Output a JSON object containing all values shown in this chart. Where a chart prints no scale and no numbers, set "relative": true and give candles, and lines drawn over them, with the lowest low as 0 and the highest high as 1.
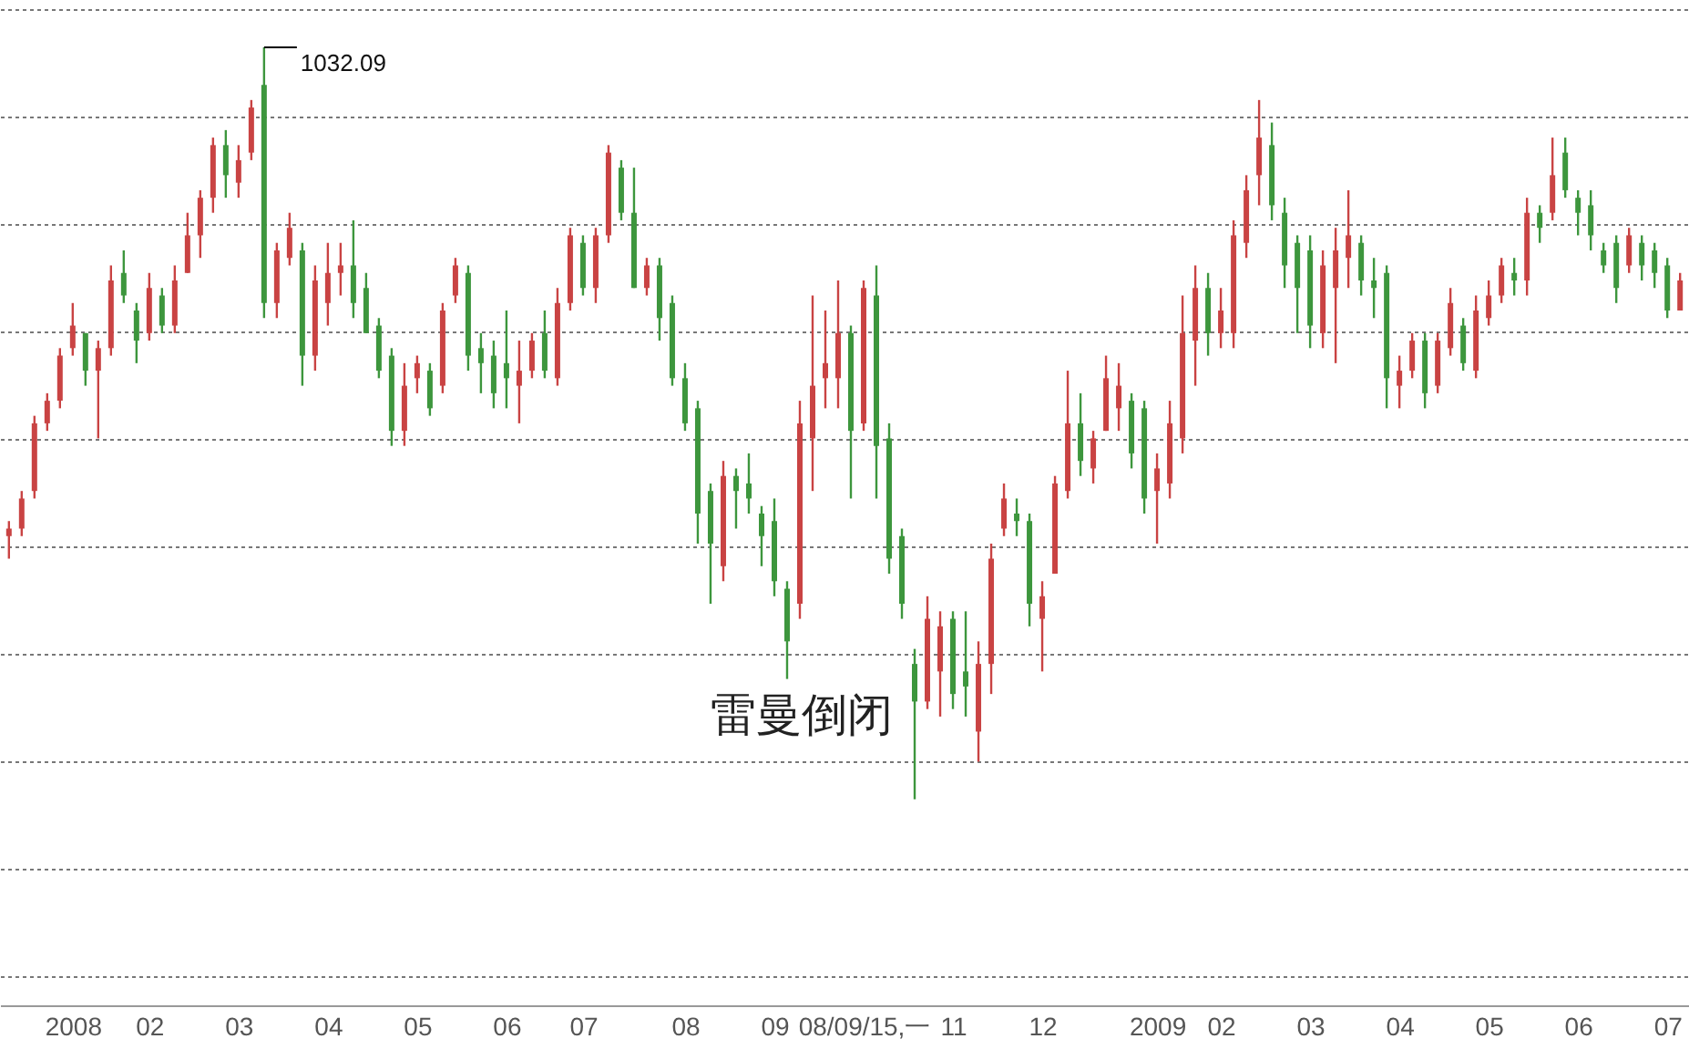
{
  "chart_data": {
    "type": "candlestick",
    "relative": true,
    "grid": "y",
    "categories": [
      null,
      null,
      null,
      null,
      null,
      "2008",
      null,
      null,
      null,
      null,
      null,
      "02",
      null,
      null,
      null,
      null,
      null,
      null,
      "03",
      null,
      null,
      null,
      null,
      null,
      null,
      "04",
      null,
      null,
      null,
      null,
      null,
      null,
      "05",
      null,
      null,
      null,
      null,
      null,
      null,
      "06",
      null,
      null,
      null,
      null,
      null,
      "07",
      null,
      null,
      null,
      null,
      null,
      null,
      null,
      "08",
      null,
      null,
      null,
      null,
      null,
      null,
      "09",
      null,
      null,
      null,
      null,
      null,
      null,
      "08/09/15,一",
      null,
      null,
      null,
      null,
      null,
      null,
      "11",
      null,
      null,
      null,
      null,
      null,
      null,
      "12",
      null,
      null,
      null,
      null,
      null,
      null,
      null,
      null,
      "2009",
      null,
      null,
      null,
      null,
      "02",
      null,
      null,
      null,
      null,
      null,
      null,
      "03",
      null,
      null,
      null,
      null,
      null,
      null,
      "04",
      null,
      null,
      null,
      null,
      null,
      null,
      "05",
      null,
      null,
      null,
      null,
      null,
      null,
      "06",
      null,
      null,
      null,
      null,
      null,
      null,
      "07",
      null
    ],
    "ohlc": [
      [
        0.35,
        0.37,
        0.32,
        0.36
      ],
      [
        0.36,
        0.41,
        0.35,
        0.4
      ],
      [
        0.41,
        0.51,
        0.4,
        0.5
      ],
      [
        0.5,
        0.54,
        0.49,
        0.53
      ],
      [
        0.53,
        0.6,
        0.52,
        0.59
      ],
      [
        0.6,
        0.66,
        0.59,
        0.63
      ],
      [
        0.62,
        0.62,
        0.55,
        0.57
      ],
      [
        0.57,
        0.61,
        0.48,
        0.6
      ],
      [
        0.6,
        0.71,
        0.59,
        0.69
      ],
      [
        0.7,
        0.73,
        0.66,
        0.67
      ],
      [
        0.65,
        0.66,
        0.58,
        0.61
      ],
      [
        0.62,
        0.7,
        0.61,
        0.68
      ],
      [
        0.67,
        0.68,
        0.62,
        0.63
      ],
      [
        0.63,
        0.71,
        0.62,
        0.69
      ],
      [
        0.7,
        0.78,
        0.7,
        0.75
      ],
      [
        0.75,
        0.81,
        0.72,
        0.8
      ],
      [
        0.8,
        0.88,
        0.78,
        0.87
      ],
      [
        0.87,
        0.89,
        0.8,
        0.83
      ],
      [
        0.82,
        0.87,
        0.8,
        0.85
      ],
      [
        0.86,
        0.93,
        0.85,
        0.92
      ],
      [
        0.95,
        1.0,
        0.64,
        0.66
      ],
      [
        0.66,
        0.74,
        0.64,
        0.73
      ],
      [
        0.72,
        0.78,
        0.71,
        0.76
      ],
      [
        0.73,
        0.74,
        0.55,
        0.59
      ],
      [
        0.59,
        0.71,
        0.57,
        0.69
      ],
      [
        0.66,
        0.74,
        0.63,
        0.7
      ],
      [
        0.7,
        0.74,
        0.67,
        0.71
      ],
      [
        0.71,
        0.77,
        0.64,
        0.66
      ],
      [
        0.68,
        0.7,
        0.62,
        0.62
      ],
      [
        0.63,
        0.64,
        0.56,
        0.57
      ],
      [
        0.59,
        0.6,
        0.47,
        0.49
      ],
      [
        0.49,
        0.58,
        0.47,
        0.55
      ],
      [
        0.56,
        0.59,
        0.54,
        0.58
      ],
      [
        0.57,
        0.58,
        0.51,
        0.52
      ],
      [
        0.55,
        0.66,
        0.54,
        0.65
      ],
      [
        0.67,
        0.72,
        0.66,
        0.71
      ],
      [
        0.7,
        0.71,
        0.57,
        0.59
      ],
      [
        0.6,
        0.62,
        0.54,
        0.58
      ],
      [
        0.59,
        0.61,
        0.52,
        0.54
      ],
      [
        0.58,
        0.65,
        0.52,
        0.56
      ],
      [
        0.55,
        0.61,
        0.5,
        0.57
      ],
      [
        0.57,
        0.62,
        0.56,
        0.61
      ],
      [
        0.62,
        0.65,
        0.56,
        0.57
      ],
      [
        0.56,
        0.68,
        0.55,
        0.66
      ],
      [
        0.66,
        0.76,
        0.65,
        0.75
      ],
      [
        0.74,
        0.75,
        0.67,
        0.68
      ],
      [
        0.68,
        0.76,
        0.66,
        0.75
      ],
      [
        0.75,
        0.87,
        0.74,
        0.86
      ],
      [
        0.84,
        0.85,
        0.77,
        0.78
      ],
      [
        0.78,
        0.84,
        0.68,
        0.68
      ],
      [
        0.68,
        0.72,
        0.67,
        0.71
      ],
      [
        0.71,
        0.72,
        0.61,
        0.64
      ],
      [
        0.66,
        0.67,
        0.55,
        0.56
      ],
      [
        0.56,
        0.58,
        0.49,
        0.5
      ],
      [
        0.52,
        0.53,
        0.34,
        0.38
      ],
      [
        0.41,
        0.42,
        0.26,
        0.34
      ],
      [
        0.31,
        0.45,
        0.29,
        0.43
      ],
      [
        0.43,
        0.44,
        0.36,
        0.41
      ],
      [
        0.42,
        0.46,
        0.38,
        0.4
      ],
      [
        0.38,
        0.39,
        0.31,
        0.35
      ],
      [
        0.37,
        0.4,
        0.27,
        0.29
      ],
      [
        0.28,
        0.29,
        0.16,
        0.21
      ],
      [
        0.26,
        0.53,
        0.24,
        0.5
      ],
      [
        0.48,
        0.67,
        0.41,
        0.55
      ],
      [
        0.56,
        0.65,
        0.52,
        0.58
      ],
      [
        0.56,
        0.69,
        0.52,
        0.62
      ],
      [
        0.62,
        0.63,
        0.4,
        0.49
      ],
      [
        0.5,
        0.69,
        0.49,
        0.68
      ],
      [
        0.67,
        0.71,
        0.4,
        0.47
      ],
      [
        0.48,
        0.5,
        0.3,
        0.32
      ],
      [
        0.35,
        0.36,
        0.24,
        0.26
      ],
      [
        0.18,
        0.2,
        0.0,
        0.13
      ],
      [
        0.13,
        0.27,
        0.12,
        0.24
      ],
      [
        0.17,
        0.25,
        0.11,
        0.23
      ],
      [
        0.24,
        0.25,
        0.12,
        0.14
      ],
      [
        0.17,
        0.25,
        0.11,
        0.15
      ],
      [
        0.09,
        0.21,
        0.05,
        0.18
      ],
      [
        0.18,
        0.34,
        0.14,
        0.32
      ],
      [
        0.36,
        0.42,
        0.35,
        0.4
      ],
      [
        0.38,
        0.4,
        0.35,
        0.37
      ],
      [
        0.37,
        0.38,
        0.23,
        0.26
      ],
      [
        0.24,
        0.29,
        0.17,
        0.27
      ],
      [
        0.3,
        0.43,
        0.3,
        0.42
      ],
      [
        0.41,
        0.57,
        0.4,
        0.5
      ],
      [
        0.5,
        0.54,
        0.43,
        0.45
      ],
      [
        0.44,
        0.49,
        0.42,
        0.48
      ],
      [
        0.49,
        0.59,
        0.49,
        0.56
      ],
      [
        0.52,
        0.58,
        0.49,
        0.55
      ],
      [
        0.53,
        0.54,
        0.44,
        0.46
      ],
      [
        0.52,
        0.53,
        0.38,
        0.4
      ],
      [
        0.41,
        0.46,
        0.34,
        0.44
      ],
      [
        0.42,
        0.53,
        0.4,
        0.5
      ],
      [
        0.48,
        0.67,
        0.46,
        0.62
      ],
      [
        0.61,
        0.71,
        0.55,
        0.68
      ],
      [
        0.68,
        0.7,
        0.59,
        0.62
      ],
      [
        0.62,
        0.68,
        0.6,
        0.65
      ],
      [
        0.62,
        0.77,
        0.6,
        0.75
      ],
      [
        0.74,
        0.83,
        0.72,
        0.81
      ],
      [
        0.83,
        0.93,
        0.79,
        0.88
      ],
      [
        0.87,
        0.9,
        0.77,
        0.79
      ],
      [
        0.78,
        0.8,
        0.68,
        0.71
      ],
      [
        0.74,
        0.75,
        0.62,
        0.68
      ],
      [
        0.73,
        0.75,
        0.6,
        0.63
      ],
      [
        0.62,
        0.73,
        0.6,
        0.71
      ],
      [
        0.68,
        0.76,
        0.58,
        0.73
      ],
      [
        0.72,
        0.81,
        0.68,
        0.75
      ],
      [
        0.74,
        0.75,
        0.67,
        0.69
      ],
      [
        0.69,
        0.72,
        0.64,
        0.68
      ],
      [
        0.7,
        0.71,
        0.52,
        0.56
      ],
      [
        0.55,
        0.59,
        0.52,
        0.57
      ],
      [
        0.57,
        0.62,
        0.56,
        0.61
      ],
      [
        0.61,
        0.62,
        0.52,
        0.54
      ],
      [
        0.55,
        0.62,
        0.54,
        0.61
      ],
      [
        0.6,
        0.68,
        0.59,
        0.66
      ],
      [
        0.63,
        0.64,
        0.57,
        0.58
      ],
      [
        0.57,
        0.67,
        0.56,
        0.65
      ],
      [
        0.64,
        0.69,
        0.63,
        0.67
      ],
      [
        0.67,
        0.72,
        0.66,
        0.71
      ],
      [
        0.7,
        0.72,
        0.67,
        0.69
      ],
      [
        0.69,
        0.8,
        0.67,
        0.78
      ],
      [
        0.78,
        0.79,
        0.74,
        0.76
      ],
      [
        0.78,
        0.88,
        0.77,
        0.83
      ],
      [
        0.86,
        0.88,
        0.8,
        0.81
      ],
      [
        0.8,
        0.81,
        0.75,
        0.78
      ],
      [
        0.79,
        0.81,
        0.73,
        0.75
      ],
      [
        0.73,
        0.74,
        0.7,
        0.71
      ],
      [
        0.74,
        0.75,
        0.66,
        0.68
      ],
      [
        0.71,
        0.76,
        0.7,
        0.75
      ],
      [
        0.74,
        0.75,
        0.69,
        0.71
      ],
      [
        0.73,
        0.74,
        0.68,
        0.7
      ],
      [
        0.71,
        0.72,
        0.64,
        0.65
      ],
      [
        0.65,
        0.7,
        0.65,
        0.69
      ]
    ],
    "colors": [
      "#c94343",
      "#c94343",
      "#c94343",
      "#c94343",
      "#c94343",
      "#c94343",
      "#3d963d",
      "#c94343",
      "#c94343",
      "#3d963d",
      "#3d963d",
      "#c94343",
      "#3d963d",
      "#c94343",
      "#c94343",
      "#c94343",
      "#c94343",
      "#3d963d",
      "#c94343",
      "#c94343",
      "#3d963d",
      "#c94343",
      "#c94343",
      "#3d963d",
      "#c94343",
      "#c94343",
      "#c94343",
      "#3d963d",
      "#3d963d",
      "#3d963d",
      "#3d963d",
      "#c94343",
      "#c94343",
      "#3d963d",
      "#c94343",
      "#c94343",
      "#3d963d",
      "#3d963d",
      "#3d963d",
      "#3d963d",
      "#c94343",
      "#c94343",
      "#3d963d",
      "#c94343",
      "#c94343",
      "#3d963d",
      "#c94343",
      "#c94343",
      "#3d963d",
      "#3d963d",
      "#c94343",
      "#3d963d",
      "#3d963d",
      "#3d963d",
      "#3d963d",
      "#3d963d",
      "#c94343",
      "#3d963d",
      "#3d963d",
      "#3d963d",
      "#3d963d",
      "#3d963d",
      "#c94343",
      "#c94343",
      "#c94343",
      "#c94343",
      "#3d963d",
      "#c94343",
      "#3d963d",
      "#3d963d",
      "#3d963d",
      "#3d963d",
      "#c94343",
      "#c94343",
      "#3d963d",
      "#3d963d",
      "#c94343",
      "#c94343",
      "#c94343",
      "#3d963d",
      "#3d963d",
      "#c94343",
      "#c94343",
      "#c94343",
      "#3d963d",
      "#c94343",
      "#c94343",
      "#c94343",
      "#3d963d",
      "#3d963d",
      "#c94343",
      "#c94343",
      "#c94343",
      "#c94343",
      "#3d963d",
      "#c94343",
      "#c94343",
      "#c94343",
      "#c94343",
      "#3d963d",
      "#3d963d",
      "#3d963d",
      "#3d963d",
      "#c94343",
      "#c94343",
      "#c94343",
      "#3d963d",
      "#3d963d",
      "#3d963d",
      "#c94343",
      "#c94343",
      "#3d963d",
      "#c94343",
      "#c94343",
      "#3d963d",
      "#c94343",
      "#c94343",
      "#c94343",
      "#3d963d",
      "#c94343",
      "#3d963d",
      "#c94343",
      "#3d963d",
      "#3d963d",
      "#3d963d",
      "#3d963d",
      "#3d963d",
      "#c94343",
      "#3d963d",
      "#3d963d",
      "#3d963d",
      "#c94343"
    ],
    "annotations": [
      "1032.09",
      "雷曼倒闭"
    ]
  }
}
